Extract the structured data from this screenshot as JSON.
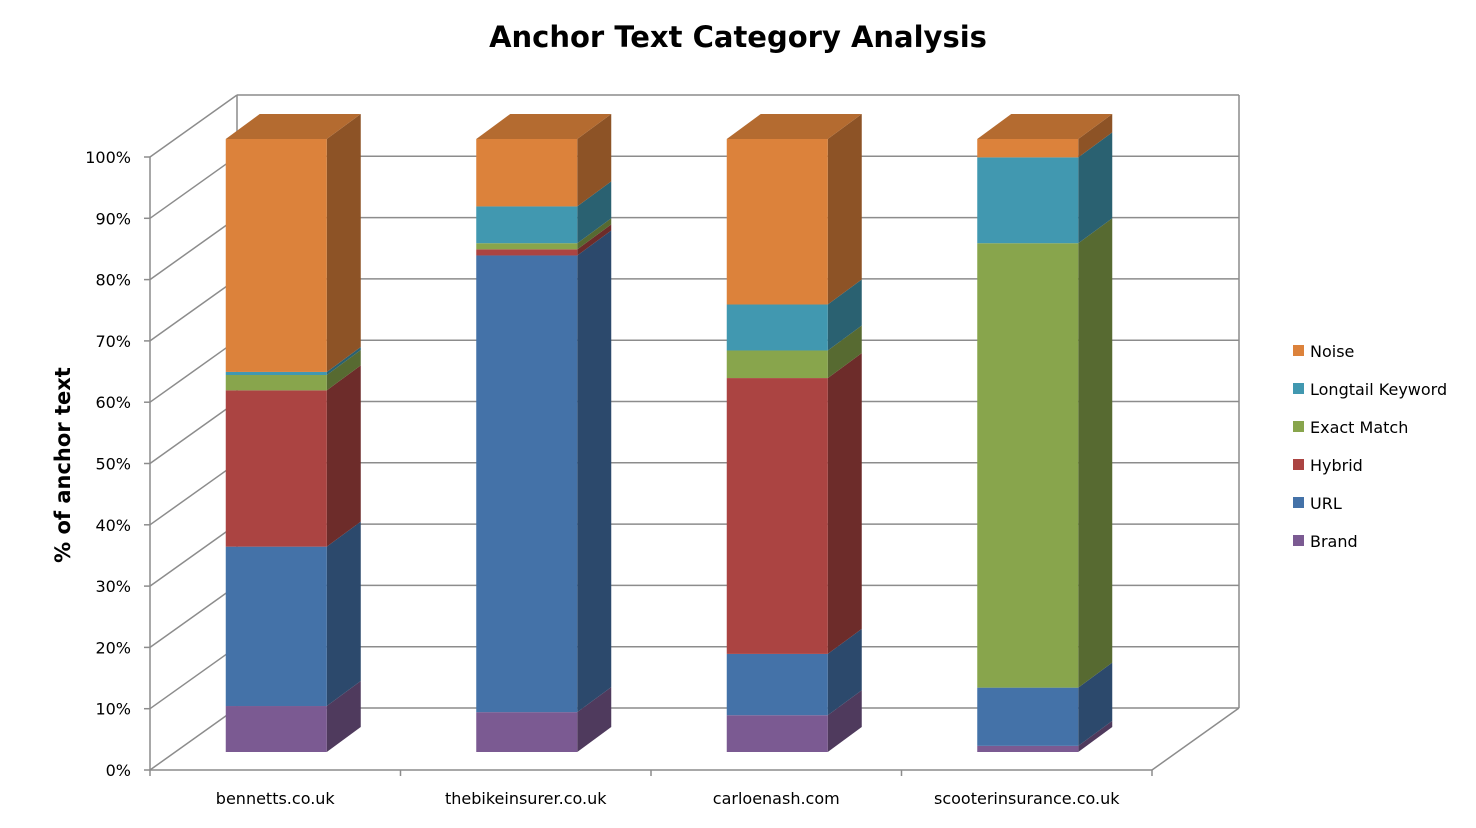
{
  "chart_data": {
    "type": "bar",
    "stacked": true,
    "three_d": true,
    "title": "Anchor Text Category Analysis",
    "xlabel": "",
    "ylabel": "% of anchor text",
    "ylim": [
      0,
      100
    ],
    "yticks": [
      "0%",
      "10%",
      "20%",
      "30%",
      "40%",
      "50%",
      "60%",
      "70%",
      "80%",
      "90%",
      "100%"
    ],
    "grid": true,
    "legend_position": "right",
    "categories": [
      "bennetts.co.uk",
      "thebikeinsurer.co.uk",
      "carloenash.com",
      "scooterinsurance.co.uk"
    ],
    "series": [
      {
        "name": "Brand",
        "color": "#7b5a92",
        "values": [
          7.5,
          6.5,
          6,
          1
        ]
      },
      {
        "name": "URL",
        "color": "#4472a8",
        "values": [
          26,
          74.5,
          10,
          9.5
        ]
      },
      {
        "name": "Hybrid",
        "color": "#ab4442",
        "values": [
          25.5,
          1,
          45,
          0
        ]
      },
      {
        "name": "Exact Match",
        "color": "#88a54c",
        "values": [
          2.5,
          1,
          4.5,
          72.5
        ]
      },
      {
        "name": "Longtail Keyword",
        "color": "#4198b0",
        "values": [
          0.5,
          6,
          7.5,
          14
        ]
      },
      {
        "name": "Noise",
        "color": "#dc823b",
        "values": [
          38,
          11,
          27,
          3
        ]
      }
    ]
  }
}
